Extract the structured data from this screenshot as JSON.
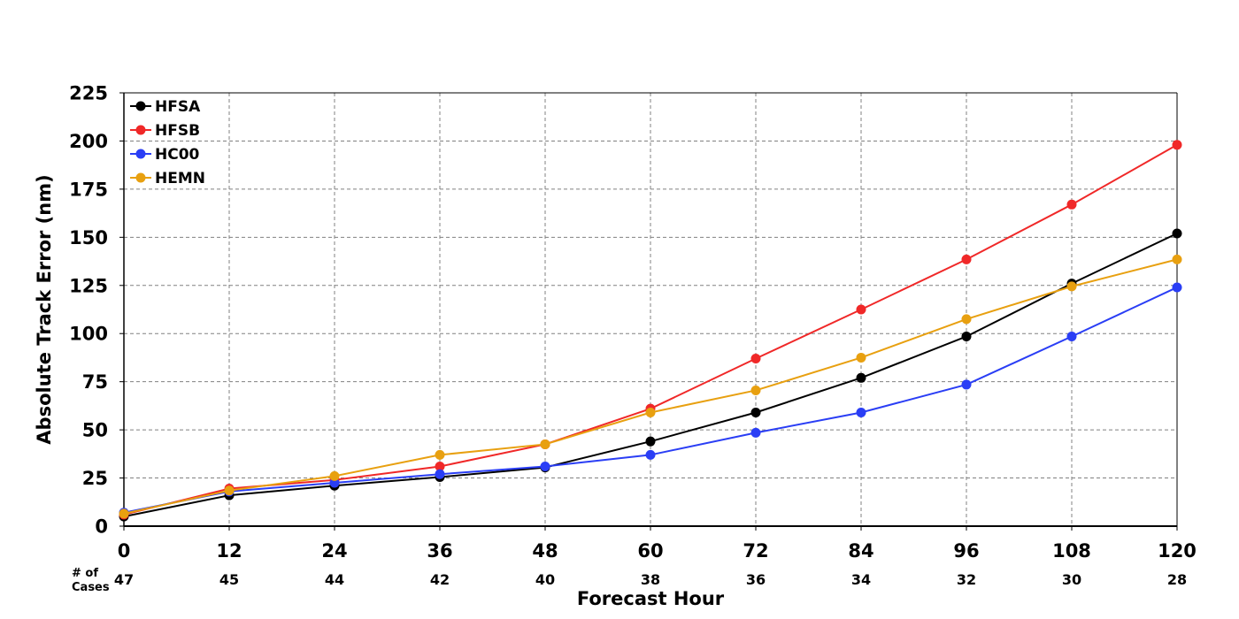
{
  "chart_data": {
    "type": "line",
    "xlabel": "Forecast Hour",
    "ylabel": "Absolute Track Error (nm)",
    "x": [
      0,
      12,
      24,
      36,
      48,
      60,
      72,
      84,
      96,
      108,
      120
    ],
    "xlim": [
      0,
      120
    ],
    "ylim": [
      0,
      225
    ],
    "yticks": [
      0,
      25,
      50,
      75,
      100,
      125,
      150,
      175,
      200,
      225
    ],
    "grid": true,
    "legend_position": "top-left",
    "cases_label_line1": "# of",
    "cases_label_line2": "Cases",
    "cases": [
      47,
      45,
      44,
      42,
      40,
      38,
      36,
      34,
      32,
      30,
      28
    ],
    "series": [
      {
        "name": "HFSA",
        "color": "#000000",
        "values": [
          5,
          16,
          21,
          25.5,
          30.5,
          44,
          59,
          77,
          98.5,
          126,
          152
        ]
      },
      {
        "name": "HFSB",
        "color": "#f02828",
        "values": [
          6,
          19.5,
          24,
          31,
          42.5,
          61,
          87,
          112.5,
          138.5,
          167,
          198
        ]
      },
      {
        "name": "HC00",
        "color": "#2a3ef5",
        "values": [
          7,
          18,
          22.5,
          27,
          31,
          37,
          48.5,
          59,
          73.5,
          98.5,
          124
        ]
      },
      {
        "name": "HEMN",
        "color": "#e8a010",
        "values": [
          6.5,
          18.5,
          26,
          37,
          42.5,
          59,
          70.5,
          87.5,
          107.5,
          124.5,
          138.5
        ]
      }
    ]
  }
}
